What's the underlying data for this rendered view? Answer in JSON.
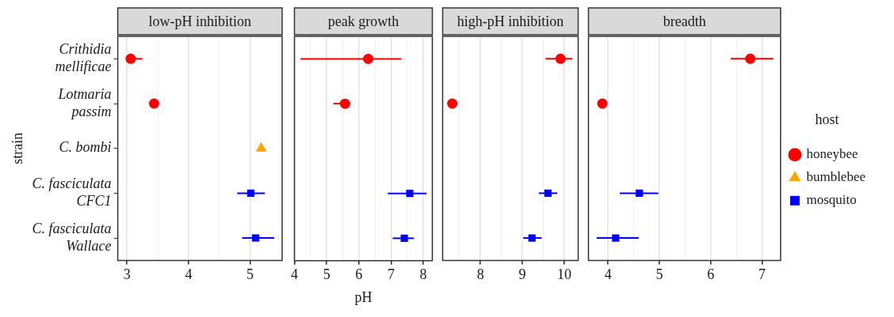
{
  "chart_data": [
    {
      "type": "scatter",
      "orientation": "horizontal",
      "title": "low-pH inhibition",
      "ylabel": "strain",
      "categories": [
        "Crithidia\nmellificae",
        "Lotmaria\npassim",
        "C. bombi",
        "C. fasciculata\nCFC1",
        "C. fasciculata\nWallace"
      ],
      "xlim": [
        2.85,
        5.52
      ],
      "xticks": [
        3,
        {
          "value": 3.5,
          "label": null
        },
        4,
        {
          "value": 4.5,
          "label": null
        },
        5
      ],
      "grid": "x",
      "series": [
        {
          "color": "#ff0000",
          "marker": "circle",
          "values": [
            3.06,
            3.44,
            null,
            null,
            null
          ],
          "errors": [
            [
              3.0,
              3.25
            ],
            null,
            null,
            null,
            null
          ]
        },
        {
          "color": "#ffa500",
          "marker": "triangle",
          "values": [
            null,
            null,
            5.18,
            null,
            null
          ],
          "errors": [
            null,
            null,
            null,
            null,
            null
          ]
        },
        {
          "color": "#0000ff",
          "marker": "square",
          "values": [
            null,
            null,
            null,
            5.01,
            5.09
          ],
          "errors": [
            null,
            null,
            null,
            [
              4.79,
              5.24
            ],
            [
              4.87,
              5.39
            ]
          ]
        }
      ]
    },
    {
      "type": "scatter",
      "orientation": "horizontal",
      "title": "peak growth",
      "xlabel": "pH",
      "tick_labels": "x",
      "xlim": [
        4,
        8.28
      ],
      "xticks": [
        4,
        {
          "value": 4.5,
          "label": null
        },
        5,
        {
          "value": 5.5,
          "label": null
        },
        6,
        {
          "value": 6.5,
          "label": null
        },
        7,
        {
          "value": 7.5,
          "label": null
        },
        8
      ],
      "grid": "x",
      "series": [
        {
          "color": "#ff0000",
          "marker": "circle",
          "values": [
            6.29,
            5.57,
            null,
            null,
            null
          ],
          "errors": [
            [
              4.19,
              7.32
            ],
            [
              5.21,
              5.74
            ],
            null,
            null,
            null
          ]
        },
        {
          "color": "#0000ff",
          "marker": "square",
          "values": [
            null,
            null,
            null,
            7.58,
            7.41
          ],
          "errors": [
            null,
            null,
            null,
            [
              6.9,
              8.1
            ],
            [
              7.05,
              7.71
            ]
          ]
        }
      ]
    },
    {
      "type": "scatter",
      "orientation": "horizontal",
      "title": "high-pH inhibition",
      "tick_labels": "x",
      "xlim": [
        7.1,
        10.33
      ],
      "xticks": [
        {
          "value": 7.5,
          "label": null
        },
        8,
        {
          "value": 8.5,
          "label": null
        },
        9,
        {
          "value": 9.5,
          "label": null
        },
        10
      ],
      "grid": "x",
      "series": [
        {
          "color": "#ff0000",
          "marker": "circle",
          "values": [
            9.91,
            7.33,
            null,
            null,
            null
          ],
          "errors": [
            [
              9.55,
              10.19
            ],
            null,
            null,
            null,
            null
          ]
        },
        {
          "color": "#0000ff",
          "marker": "square",
          "values": [
            null,
            null,
            null,
            9.61,
            9.23
          ],
          "errors": [
            null,
            null,
            null,
            [
              9.39,
              9.83
            ],
            [
              9.02,
              9.46
            ]
          ]
        }
      ]
    },
    {
      "type": "scatter",
      "orientation": "horizontal",
      "title": "breadth",
      "tick_labels": "x",
      "legend": "right",
      "legend_title": "host",
      "xlim": [
        3.62,
        7.36
      ],
      "xticks": [
        4,
        {
          "value": 4.5,
          "label": null
        },
        5,
        {
          "value": 5.5,
          "label": null
        },
        6,
        {
          "value": 6.5,
          "label": null
        },
        7
      ],
      "grid": "x",
      "series": [
        {
          "name": "honeybee",
          "color": "#ff0000",
          "marker": "circle",
          "values": [
            6.77,
            3.89,
            null,
            null,
            null
          ],
          "errors": [
            [
              6.39,
              7.22
            ],
            null,
            null,
            null,
            null
          ]
        },
        {
          "name": "bumblebee",
          "color": "#ffa500",
          "marker": "triangle",
          "values": [
            null,
            null,
            null,
            null,
            null
          ],
          "errors": [
            null,
            null,
            null,
            null,
            null
          ]
        },
        {
          "name": "mosquito",
          "color": "#0000ff",
          "marker": "square",
          "values": [
            null,
            null,
            null,
            4.61,
            4.15
          ],
          "errors": [
            null,
            null,
            null,
            [
              4.23,
              4.98
            ],
            [
              3.78,
              4.6
            ]
          ]
        }
      ]
    }
  ]
}
